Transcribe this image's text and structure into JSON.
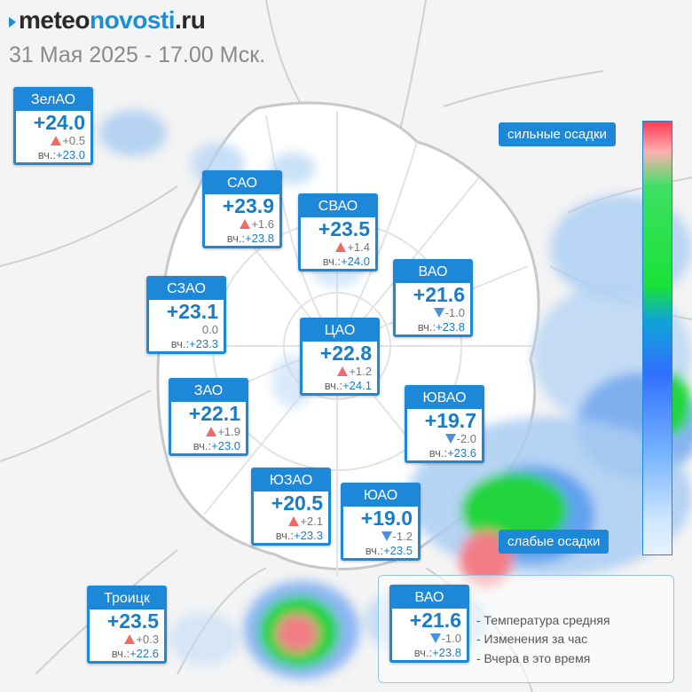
{
  "header": {
    "logo_part1": "meteo",
    "logo_part2": "novosti",
    "logo_part3": ".ru",
    "date": "31 Мая 2025 - 17.00 Мск."
  },
  "districts": [
    {
      "name": "ЗелАО",
      "temp": "+24.0",
      "trend": "up",
      "change": "+0.5",
      "yesterday_label": "вч.:",
      "yesterday": "+23.0"
    },
    {
      "name": "САО",
      "temp": "+23.9",
      "trend": "up",
      "change": "+1.6",
      "yesterday_label": "вч.:",
      "yesterday": "+23.8"
    },
    {
      "name": "СВАО",
      "temp": "+23.5",
      "trend": "up",
      "change": "+1.4",
      "yesterday_label": "вч.:",
      "yesterday": "+24.0"
    },
    {
      "name": "ВАО",
      "temp": "+21.6",
      "trend": "down",
      "change": "-1.0",
      "yesterday_label": "вч.:",
      "yesterday": "+23.8"
    },
    {
      "name": "СЗАО",
      "temp": "+23.1",
      "trend": "none",
      "change": "0.0",
      "yesterday_label": "вч.:",
      "yesterday": "+23.3"
    },
    {
      "name": "ЦАО",
      "temp": "+22.8",
      "trend": "up",
      "change": "+1.2",
      "yesterday_label": "вч.:",
      "yesterday": "+24.1"
    },
    {
      "name": "ЗАО",
      "temp": "+22.1",
      "trend": "up",
      "change": "+1.9",
      "yesterday_label": "вч.:",
      "yesterday": "+23.0"
    },
    {
      "name": "ЮВАО",
      "temp": "+19.7",
      "trend": "down",
      "change": "-2.0",
      "yesterday_label": "вч.:",
      "yesterday": "+23.6"
    },
    {
      "name": "ЮЗАО",
      "temp": "+20.5",
      "trend": "up",
      "change": "+2.1",
      "yesterday_label": "вч.:",
      "yesterday": "+23.3"
    },
    {
      "name": "ЮАО",
      "temp": "+19.0",
      "trend": "down",
      "change": "-1.2",
      "yesterday_label": "вч.:",
      "yesterday": "+23.5"
    },
    {
      "name": "Троицк",
      "temp": "+23.5",
      "trend": "up",
      "change": "+0.3",
      "yesterday_label": "вч.:",
      "yesterday": "+22.6"
    }
  ],
  "scale": {
    "top_label": "сильные осадки",
    "bottom_label": "слабые осадки",
    "colors": [
      "#ff3b55",
      "#18e238",
      "#3070ff",
      "#e6f2ff"
    ]
  },
  "legend": {
    "card": {
      "name": "ВАО",
      "temp": "+21.6",
      "trend": "down",
      "change": "-1.0",
      "yesterday_label": "вч.:",
      "yesterday": "+23.8"
    },
    "line1": "- Температура средняя",
    "line2": "- Изменения за час",
    "line3": "- Вчера в это время"
  },
  "colors": {
    "accent": "#1e88d8",
    "trend_up": "#f06a6a",
    "trend_down": "#4a90e2"
  }
}
